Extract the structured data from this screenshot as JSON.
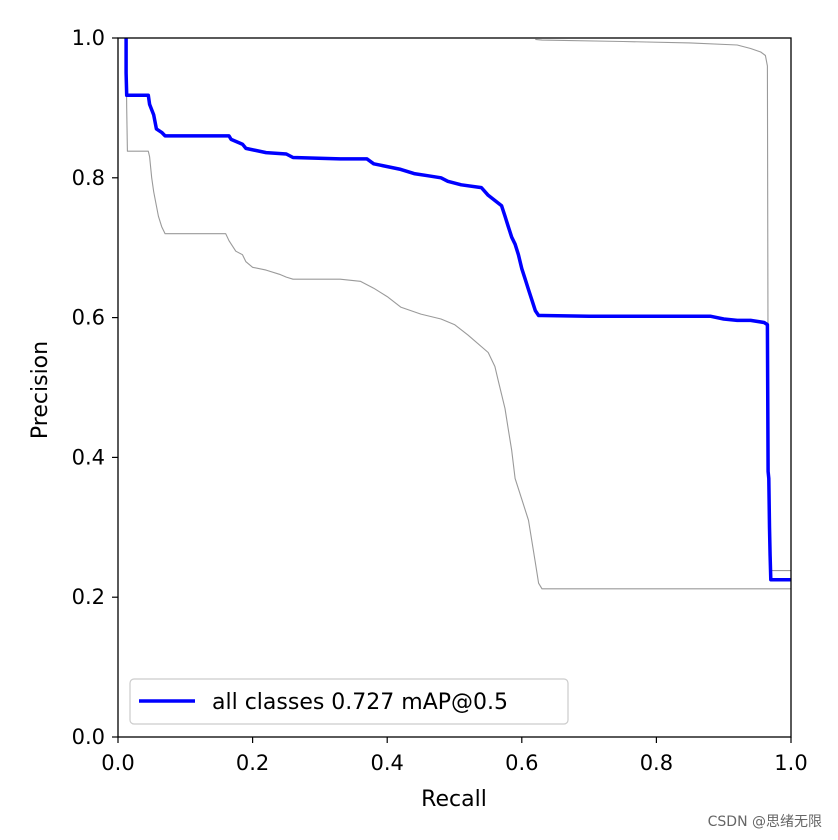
{
  "chart_data": {
    "type": "line",
    "title": "",
    "xlabel": "Recall",
    "ylabel": "Precision",
    "xlim": [
      0,
      1
    ],
    "ylim": [
      0,
      1
    ],
    "grid": false,
    "legend_position": "lower-left",
    "xticks": [
      "0.0",
      "0.2",
      "0.4",
      "0.6",
      "0.8",
      "1.0"
    ],
    "yticks": [
      "0.0",
      "0.2",
      "0.4",
      "0.6",
      "0.8",
      "1.0"
    ],
    "series": [
      {
        "name": "all classes 0.727 mAP@0.5",
        "color": "#0000ff",
        "role": "main",
        "x": [
          0.012,
          0.012,
          0.013,
          0.045,
          0.047,
          0.053,
          0.057,
          0.065,
          0.07,
          0.165,
          0.168,
          0.185,
          0.19,
          0.22,
          0.25,
          0.26,
          0.33,
          0.37,
          0.38,
          0.39,
          0.42,
          0.44,
          0.46,
          0.48,
          0.49,
          0.51,
          0.54,
          0.55,
          0.57,
          0.575,
          0.58,
          0.585,
          0.59,
          0.595,
          0.6,
          0.605,
          0.61,
          0.615,
          0.62,
          0.625,
          0.63,
          0.7,
          0.88,
          0.9,
          0.92,
          0.94,
          0.96,
          0.965,
          0.966,
          0.967,
          0.968,
          0.969,
          0.97,
          1.0
        ],
        "y": [
          1.0,
          0.95,
          0.918,
          0.918,
          0.905,
          0.89,
          0.87,
          0.865,
          0.86,
          0.86,
          0.855,
          0.848,
          0.842,
          0.836,
          0.834,
          0.829,
          0.827,
          0.827,
          0.82,
          0.818,
          0.812,
          0.806,
          0.803,
          0.8,
          0.795,
          0.79,
          0.786,
          0.775,
          0.76,
          0.745,
          0.73,
          0.715,
          0.705,
          0.69,
          0.67,
          0.655,
          0.64,
          0.625,
          0.61,
          0.603,
          0.603,
          0.602,
          0.602,
          0.598,
          0.596,
          0.596,
          0.593,
          0.59,
          0.38,
          0.37,
          0.3,
          0.26,
          0.225,
          0.225
        ]
      },
      {
        "name": "",
        "color": "#9a9a9a",
        "role": "upper-bound",
        "x": [
          0.62,
          0.63,
          0.75,
          0.85,
          0.92,
          0.94,
          0.955,
          0.962,
          0.965,
          0.966,
          0.967,
          0.968,
          0.969,
          0.97,
          1.0
        ],
        "y": [
          0.998,
          0.997,
          0.995,
          0.993,
          0.99,
          0.985,
          0.98,
          0.975,
          0.96,
          0.5,
          0.35,
          0.28,
          0.24,
          0.238,
          0.238
        ]
      },
      {
        "name": "",
        "color": "#9a9a9a",
        "role": "lower-bound",
        "x": [
          0.012,
          0.013,
          0.014,
          0.045,
          0.047,
          0.05,
          0.053,
          0.057,
          0.06,
          0.065,
          0.07,
          0.16,
          0.165,
          0.175,
          0.185,
          0.19,
          0.2,
          0.22,
          0.24,
          0.25,
          0.26,
          0.33,
          0.36,
          0.37,
          0.38,
          0.4,
          0.42,
          0.45,
          0.48,
          0.5,
          0.52,
          0.55,
          0.56,
          0.565,
          0.57,
          0.575,
          0.58,
          0.585,
          0.59,
          0.6,
          0.61,
          0.615,
          0.62,
          0.625,
          0.63,
          0.7,
          0.9,
          1.0
        ],
        "y": [
          1.0,
          0.9,
          0.838,
          0.838,
          0.83,
          0.8,
          0.78,
          0.76,
          0.745,
          0.73,
          0.72,
          0.72,
          0.71,
          0.695,
          0.69,
          0.68,
          0.672,
          0.668,
          0.662,
          0.658,
          0.655,
          0.655,
          0.652,
          0.647,
          0.642,
          0.63,
          0.615,
          0.605,
          0.598,
          0.59,
          0.575,
          0.55,
          0.53,
          0.51,
          0.49,
          0.47,
          0.44,
          0.41,
          0.37,
          0.34,
          0.31,
          0.28,
          0.25,
          0.22,
          0.212,
          0.212,
          0.212,
          0.212
        ]
      }
    ]
  },
  "watermark": "CSDN @思绪无限"
}
